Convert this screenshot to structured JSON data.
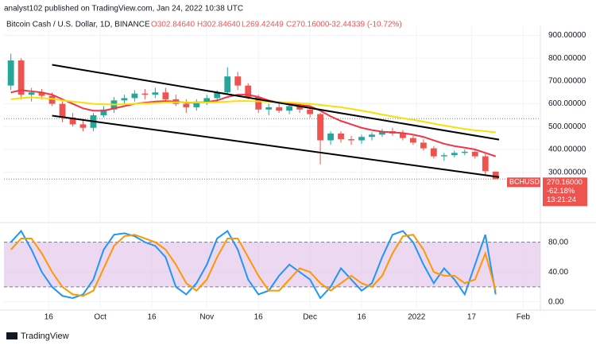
{
  "header": {
    "attribution": "analyst102 published on TradingView.com, Jan 24, 2022 10:38 UTC",
    "symbol": "Bitcoin Cash / U.S. Dollar, 1D, BINANCE",
    "open": "O302.84640",
    "high": "H302.84640",
    "low": "L269.42449",
    "close": "C270.16000",
    "change": "-32.44339 (-10.72%)"
  },
  "footer": {
    "logo": "TradingView"
  },
  "chart_data": [
    {
      "type": "candlestick",
      "up_color": "#26a69a",
      "down_color": "#ef5350",
      "x": [
        1,
        4,
        7,
        10,
        13,
        16,
        19,
        22,
        25,
        28,
        31,
        34,
        37,
        40,
        43,
        46,
        49,
        52,
        55,
        58,
        61,
        64,
        67,
        70,
        73,
        76,
        79,
        82,
        85,
        88,
        91,
        94,
        97,
        100,
        103,
        106,
        109,
        112,
        115,
        118,
        121,
        124,
        127,
        130,
        133,
        136,
        139,
        142
      ],
      "candles": [
        [
          680,
          820,
          660,
          790
        ],
        [
          790,
          800,
          620,
          640
        ],
        [
          640,
          670,
          610,
          650
        ],
        [
          650,
          665,
          620,
          635
        ],
        [
          635,
          650,
          590,
          600
        ],
        [
          600,
          610,
          520,
          540
        ],
        [
          540,
          560,
          500,
          510
        ],
        [
          510,
          530,
          480,
          495
        ],
        [
          495,
          560,
          480,
          550
        ],
        [
          550,
          590,
          540,
          575
        ],
        [
          575,
          630,
          560,
          615
        ],
        [
          615,
          640,
          600,
          625
        ],
        [
          625,
          660,
          610,
          645
        ],
        [
          645,
          665,
          620,
          640
        ],
        [
          640,
          670,
          625,
          650
        ],
        [
          650,
          670,
          610,
          620
        ],
        [
          620,
          640,
          590,
          600
        ],
        [
          600,
          620,
          560,
          585
        ],
        [
          585,
          620,
          570,
          610
        ],
        [
          610,
          640,
          595,
          625
        ],
        [
          625,
          660,
          610,
          650
        ],
        [
          650,
          760,
          640,
          720
        ],
        [
          720,
          740,
          660,
          680
        ],
        [
          680,
          690,
          620,
          630
        ],
        [
          630,
          640,
          560,
          575
        ],
        [
          575,
          600,
          550,
          585
        ],
        [
          585,
          605,
          560,
          570
        ],
        [
          570,
          600,
          555,
          590
        ],
        [
          590,
          605,
          560,
          575
        ],
        [
          575,
          590,
          540,
          555
        ],
        [
          555,
          560,
          335,
          440
        ],
        [
          440,
          480,
          420,
          470
        ],
        [
          470,
          480,
          430,
          445
        ],
        [
          445,
          460,
          420,
          440
        ],
        [
          440,
          465,
          425,
          455
        ],
        [
          455,
          475,
          440,
          465
        ],
        [
          465,
          490,
          455,
          480
        ],
        [
          480,
          495,
          460,
          470
        ],
        [
          470,
          485,
          440,
          450
        ],
        [
          450,
          460,
          420,
          430
        ],
        [
          430,
          445,
          395,
          405
        ],
        [
          405,
          415,
          360,
          370
        ],
        [
          370,
          385,
          350,
          375
        ],
        [
          375,
          395,
          365,
          385
        ],
        [
          385,
          400,
          375,
          390
        ],
        [
          390,
          395,
          360,
          370
        ],
        [
          370,
          380,
          290,
          305
        ],
        [
          302.8464,
          302.8464,
          269.42449,
          270.16
        ]
      ],
      "series": [
        {
          "color": "#f23645",
          "values": [
            650,
            660,
            655,
            650,
            640,
            620,
            600,
            580,
            570,
            570,
            580,
            590,
            600,
            605,
            610,
            612,
            610,
            605,
            605,
            608,
            615,
            630,
            640,
            640,
            630,
            615,
            605,
            600,
            595,
            590,
            570,
            545,
            525,
            510,
            495,
            485,
            478,
            475,
            472,
            465,
            455,
            440,
            425,
            415,
            408,
            400,
            385,
            370
          ]
        },
        {
          "color": "#f5e10a",
          "values": [
            620,
            625,
            628,
            625,
            622,
            615,
            610,
            605,
            600,
            598,
            597,
            598,
            600,
            602,
            604,
            606,
            607,
            607,
            606,
            606,
            607,
            610,
            612,
            612,
            611,
            610,
            608,
            606,
            603,
            600,
            595,
            590,
            585,
            578,
            570,
            562,
            553,
            545,
            537,
            530,
            522,
            513,
            505,
            497,
            490,
            484,
            480,
            475
          ]
        }
      ],
      "trendlines": [
        {
          "color": "#000000",
          "x": [
            13,
            143
          ],
          "y": [
            771,
            443
          ]
        },
        {
          "color": "#000000",
          "x": [
            13,
            143
          ],
          "y": [
            548,
            279
          ]
        }
      ],
      "hline": 535,
      "xlim": [
        -1,
        155
      ],
      "ylim": [
        90,
        940
      ],
      "yticks": [
        {
          "value": 900,
          "label": "900.00000"
        },
        {
          "value": 800,
          "label": "800.00000"
        },
        {
          "value": 700,
          "label": "700.00000"
        },
        {
          "value": 600,
          "label": "600.00000"
        },
        {
          "value": 500,
          "label": "500.00000"
        },
        {
          "value": 400,
          "label": "400.00000"
        },
        {
          "value": 300,
          "label": "300.00000"
        }
      ],
      "xticks": [
        {
          "value": 12,
          "label": "16"
        },
        {
          "value": 27,
          "label": "Oct"
        },
        {
          "value": 42,
          "label": "16"
        },
        {
          "value": 58,
          "label": "Nov"
        },
        {
          "value": 73,
          "label": "16"
        },
        {
          "value": 88,
          "label": "Dec"
        },
        {
          "value": 103,
          "label": "16"
        },
        {
          "value": 119,
          "label": "2022"
        },
        {
          "value": 135,
          "label": "17"
        },
        {
          "value": 150,
          "label": "Feb"
        }
      ],
      "last_tag": {
        "symbol": "BCHUSD",
        "price": "270.16000",
        "change": "-62.18%",
        "countdown": "13:21:24"
      }
    },
    {
      "type": "line",
      "series": [
        {
          "color": "#2196f3",
          "values": [
            80,
            95,
            70,
            40,
            20,
            8,
            5,
            10,
            30,
            70,
            90,
            92,
            88,
            80,
            75,
            60,
            20,
            10,
            25,
            50,
            85,
            95,
            70,
            30,
            10,
            15,
            35,
            50,
            40,
            30,
            5,
            20,
            45,
            30,
            15,
            25,
            60,
            90,
            95,
            80,
            50,
            25,
            45,
            30,
            10,
            50,
            90,
            10
          ]
        },
        {
          "color": "#ff9800",
          "values": [
            70,
            85,
            85,
            65,
            40,
            20,
            10,
            8,
            15,
            45,
            75,
            88,
            90,
            85,
            80,
            70,
            50,
            25,
            15,
            30,
            60,
            85,
            85,
            60,
            35,
            15,
            15,
            30,
            45,
            40,
            25,
            15,
            25,
            35,
            25,
            20,
            35,
            65,
            88,
            90,
            70,
            40,
            35,
            35,
            25,
            30,
            65,
            15
          ]
        }
      ],
      "band": [
        20,
        80
      ],
      "ylim": [
        -11,
        102
      ],
      "yticks": [
        {
          "value": 80,
          "label": "80.00"
        },
        {
          "value": 40,
          "label": "40.00"
        },
        {
          "value": 0,
          "label": "0.00"
        }
      ]
    }
  ]
}
